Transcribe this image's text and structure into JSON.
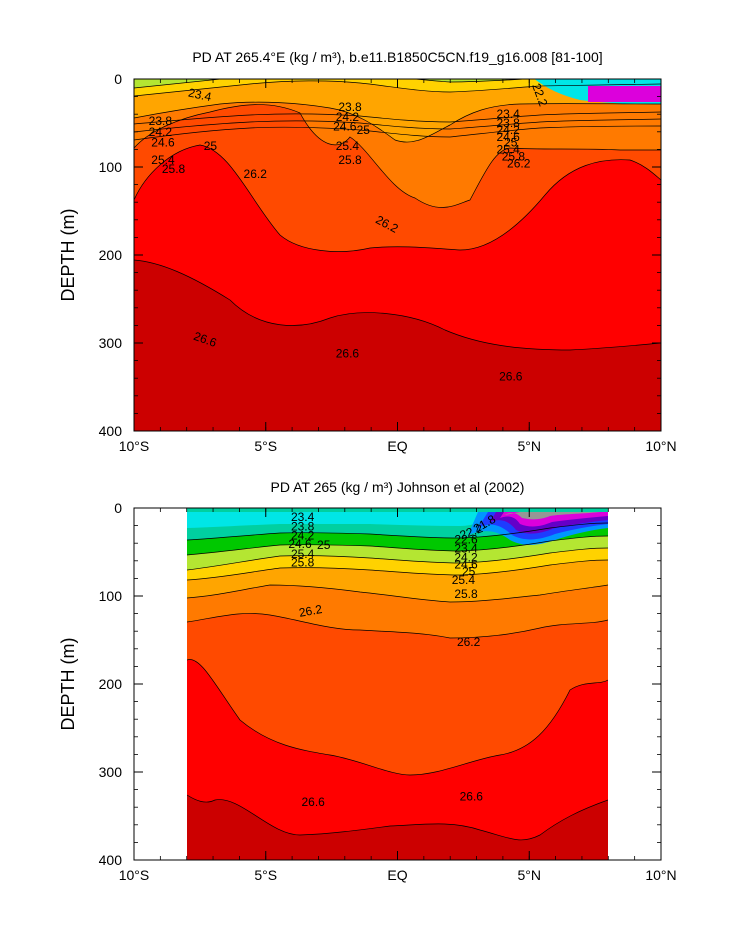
{
  "chart_data": [
    {
      "type": "heatmap",
      "title": "PD AT 265.4°E (kg / m³), b.e11.B1850C5CN.f19_g16.008 [81-100]",
      "ylabel": "DEPTH (m)",
      "xlim": [
        -10,
        10
      ],
      "ylim": [
        400,
        0
      ],
      "x_ticks": [
        {
          "value": -10,
          "label": "10°S"
        },
        {
          "value": -5,
          "label": "5°S"
        },
        {
          "value": 0,
          "label": "EQ"
        },
        {
          "value": 5,
          "label": "5°N"
        },
        {
          "value": 10,
          "label": "10°N"
        }
      ],
      "y_ticks": [
        {
          "value": 0,
          "label": "0"
        },
        {
          "value": 100,
          "label": "100"
        },
        {
          "value": 200,
          "label": "200"
        },
        {
          "value": 300,
          "label": "300"
        },
        {
          "value": 400,
          "label": "400"
        }
      ],
      "data_xlim": [
        -10,
        10
      ],
      "contour_labels": [
        {
          "text": "23.4",
          "x": -7.5,
          "y": 18,
          "rot": 12
        },
        {
          "text": "23.8",
          "x": -9.0,
          "y": 48,
          "rot": 0
        },
        {
          "text": "24.2",
          "x": -9.0,
          "y": 60,
          "rot": 0
        },
        {
          "text": "24.6",
          "x": -8.9,
          "y": 72,
          "rot": 0
        },
        {
          "text": "25",
          "x": -7.1,
          "y": 76,
          "rot": 0
        },
        {
          "text": "25.4",
          "x": -8.9,
          "y": 92,
          "rot": 0
        },
        {
          "text": "25.8",
          "x": -8.5,
          "y": 102,
          "rot": 0
        },
        {
          "text": "26.2",
          "x": -5.4,
          "y": 108,
          "rot": 0
        },
        {
          "text": "23.8",
          "x": -1.8,
          "y": 32,
          "rot": 0
        },
        {
          "text": "24.2",
          "x": -1.9,
          "y": 43,
          "rot": 0
        },
        {
          "text": "24.6",
          "x": -2.0,
          "y": 54,
          "rot": 0
        },
        {
          "text": "25",
          "x": -1.3,
          "y": 58,
          "rot": 0
        },
        {
          "text": "25.4",
          "x": -1.9,
          "y": 76,
          "rot": 0
        },
        {
          "text": "25.8",
          "x": -1.8,
          "y": 92,
          "rot": 0
        },
        {
          "text": "26.2",
          "x": -0.4,
          "y": 165,
          "rot": 28
        },
        {
          "text": "22.2",
          "x": 5.4,
          "y": 18,
          "rot": 70
        },
        {
          "text": "23.4",
          "x": 4.2,
          "y": 40,
          "rot": 0
        },
        {
          "text": "23.8",
          "x": 4.2,
          "y": 50,
          "rot": 0
        },
        {
          "text": "24.2",
          "x": 4.2,
          "y": 58,
          "rot": 0
        },
        {
          "text": "24.6",
          "x": 4.2,
          "y": 66,
          "rot": 0
        },
        {
          "text": "25",
          "x": 4.3,
          "y": 72,
          "rot": 0
        },
        {
          "text": "25.4",
          "x": 4.2,
          "y": 80,
          "rot": 0
        },
        {
          "text": "25.8",
          "x": 4.4,
          "y": 88,
          "rot": 0
        },
        {
          "text": "26.2",
          "x": 4.6,
          "y": 96,
          "rot": 0
        },
        {
          "text": "26.6",
          "x": -7.3,
          "y": 296,
          "rot": 20
        },
        {
          "text": "26.6",
          "x": -1.9,
          "y": 312,
          "rot": 0
        },
        {
          "text": "26.6",
          "x": 4.3,
          "y": 338,
          "rot": 0
        }
      ]
    },
    {
      "type": "heatmap",
      "title": "PD AT 265 (kg / m³) Johnson et al (2002)",
      "ylabel": "DEPTH (m)",
      "xlim": [
        -10,
        10
      ],
      "ylim": [
        400,
        0
      ],
      "x_ticks": [
        {
          "value": -10,
          "label": "10°S"
        },
        {
          "value": -5,
          "label": "5°S"
        },
        {
          "value": 0,
          "label": "EQ"
        },
        {
          "value": 5,
          "label": "5°N"
        },
        {
          "value": 10,
          "label": "10°N"
        }
      ],
      "y_ticks": [
        {
          "value": 0,
          "label": "0"
        },
        {
          "value": 100,
          "label": "100"
        },
        {
          "value": 200,
          "label": "200"
        },
        {
          "value": 300,
          "label": "300"
        },
        {
          "value": 400,
          "label": "400"
        }
      ],
      "data_xlim": [
        -8,
        8
      ],
      "contour_labels": [
        {
          "text": "23.4",
          "x": -3.6,
          "y": 10,
          "rot": 0
        },
        {
          "text": "23.8",
          "x": -3.6,
          "y": 21,
          "rot": 0
        },
        {
          "text": "24.2",
          "x": -3.6,
          "y": 31,
          "rot": 0
        },
        {
          "text": "24.6",
          "x": -3.7,
          "y": 41,
          "rot": 0
        },
        {
          "text": "25",
          "x": -2.8,
          "y": 42,
          "rot": 0
        },
        {
          "text": "25.4",
          "x": -3.6,
          "y": 52,
          "rot": 0
        },
        {
          "text": "25.8",
          "x": -3.6,
          "y": 62,
          "rot": 0
        },
        {
          "text": "26.2",
          "x": -3.3,
          "y": 117,
          "rot": -10
        },
        {
          "text": "26.2",
          "x": 2.7,
          "y": 152,
          "rot": 0
        },
        {
          "text": "21.8",
          "x": 3.3,
          "y": 18,
          "rot": -30
        },
        {
          "text": "22.2",
          "x": 2.8,
          "y": 27,
          "rot": -20
        },
        {
          "text": "22.6",
          "x": 2.6,
          "y": 36,
          "rot": 0
        },
        {
          "text": "23.4",
          "x": 2.6,
          "y": 46,
          "rot": 0
        },
        {
          "text": "24.2",
          "x": 2.6,
          "y": 56,
          "rot": 0
        },
        {
          "text": "24.6",
          "x": 2.6,
          "y": 64,
          "rot": 0
        },
        {
          "text": "25",
          "x": 2.7,
          "y": 72,
          "rot": 0
        },
        {
          "text": "25.4",
          "x": 2.5,
          "y": 82,
          "rot": 0
        },
        {
          "text": "25.8",
          "x": 2.6,
          "y": 98,
          "rot": 0
        },
        {
          "text": "26.6",
          "x": -3.2,
          "y": 334,
          "rot": 0
        },
        {
          "text": "26.6",
          "x": 2.8,
          "y": 328,
          "rot": 0
        }
      ]
    }
  ]
}
